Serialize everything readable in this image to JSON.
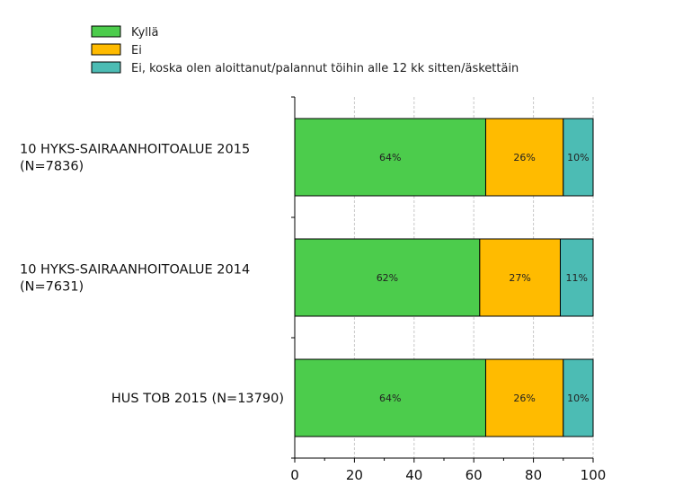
{
  "chart_data": {
    "type": "bar",
    "orientation": "horizontal",
    "stacked": true,
    "categories": [
      [
        "10 HYKS-SAIRAANHOITOALUE 2015",
        "(N=7836)"
      ],
      [
        "10 HYKS-SAIRAANHOITOALUE 2014",
        "(N=7631)"
      ],
      [
        "HUS TOB 2015 (N=13790)"
      ]
    ],
    "series": [
      {
        "name": "Kyllä",
        "color": "#4ccc4c",
        "values": [
          64,
          62,
          64
        ],
        "labels": [
          "64%",
          "62%",
          "64%"
        ]
      },
      {
        "name": "Ei",
        "color": "#ffbb00",
        "values": [
          26,
          27,
          26
        ],
        "labels": [
          "26%",
          "27%",
          "26%"
        ]
      },
      {
        "name": "Ei, koska olen aloittanut/palannut töihin alle 12 kk sitten/äskettäin",
        "color": "#4cbcb4",
        "values": [
          10,
          11,
          10
        ],
        "labels": [
          "10%",
          "11%",
          "10%"
        ]
      }
    ],
    "xlim": [
      0,
      100
    ],
    "xticks": [
      "0",
      "20",
      "40",
      "60",
      "80",
      "100"
    ],
    "grid": true,
    "legend_position": "top-left"
  }
}
